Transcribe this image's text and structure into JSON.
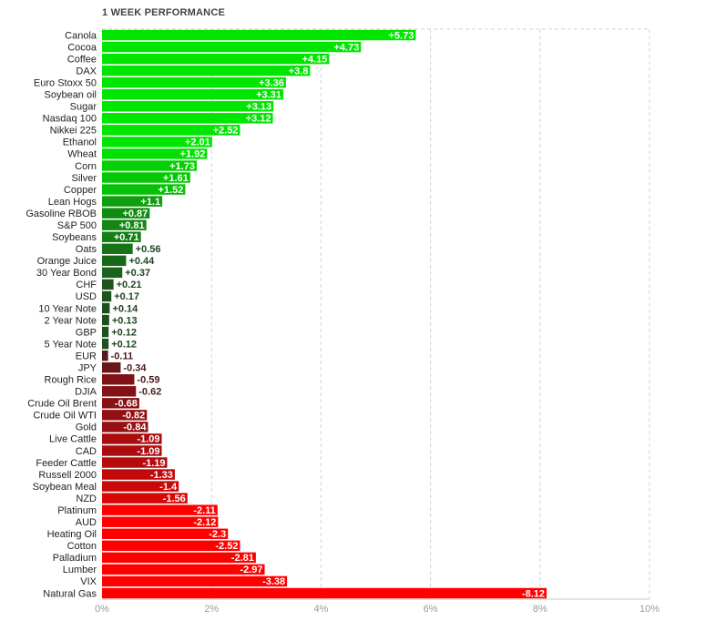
{
  "chart_data": {
    "type": "bar",
    "orientation": "horizontal",
    "title": "1 WEEK PERFORMANCE",
    "categories": [
      "Canola",
      "Cocoa",
      "Coffee",
      "DAX",
      "Euro Stoxx 50",
      "Soybean oil",
      "Sugar",
      "Nasdaq 100",
      "Nikkei 225",
      "Ethanol",
      "Wheat",
      "Corn",
      "Silver",
      "Copper",
      "Lean Hogs",
      "Gasoline RBOB",
      "S&P 500",
      "Soybeans",
      "Oats",
      "Orange Juice",
      "30 Year Bond",
      "CHF",
      "USD",
      "10 Year Note",
      "2 Year Note",
      "GBP",
      "5 Year Note",
      "EUR",
      "JPY",
      "Rough Rice",
      "DJIA",
      "Crude Oil Brent",
      "Crude Oil WTI",
      "Gold",
      "Live Cattle",
      "CAD",
      "Feeder Cattle",
      "Russell 2000",
      "Soybean Meal",
      "NZD",
      "Platinum",
      "AUD",
      "Heating Oil",
      "Cotton",
      "Palladium",
      "Lumber",
      "VIX",
      "Natural Gas"
    ],
    "values": [
      5.73,
      4.73,
      4.15,
      3.8,
      3.36,
      3.31,
      3.13,
      3.12,
      2.52,
      2.01,
      1.92,
      1.73,
      1.61,
      1.52,
      1.1,
      0.87,
      0.81,
      0.71,
      0.56,
      0.44,
      0.37,
      0.21,
      0.17,
      0.14,
      0.13,
      0.12,
      0.12,
      -0.11,
      -0.34,
      -0.59,
      -0.62,
      -0.68,
      -0.82,
      -0.84,
      -1.09,
      -1.09,
      -1.19,
      -1.33,
      -1.4,
      -1.56,
      -2.11,
      -2.12,
      -2.3,
      -2.52,
      -2.81,
      -2.97,
      -3.38,
      -8.12
    ],
    "value_labels": [
      "+5.73",
      "+4.73",
      "+4.15",
      "+3.8",
      "+3.36",
      "+3.31",
      "+3.13",
      "+3.12",
      "+2.52",
      "+2.01",
      "+1.92",
      "+1.73",
      "+1.61",
      "+1.52",
      "+1.1",
      "+0.87",
      "+0.81",
      "+0.71",
      "+0.56",
      "+0.44",
      "+0.37",
      "+0.21",
      "+0.17",
      "+0.14",
      "+0.13",
      "+0.12",
      "+0.12",
      "-0.11",
      "-0.34",
      "-0.59",
      "-0.62",
      "-0.68",
      "-0.82",
      "-0.84",
      "-1.09",
      "-1.09",
      "-1.19",
      "-1.33",
      "-1.4",
      "-1.56",
      "-2.11",
      "-2.12",
      "-2.3",
      "-2.52",
      "-2.81",
      "-2.97",
      "-3.38",
      "-8.12"
    ],
    "bar_magnitude": "absolute value",
    "xlim": [
      0,
      10
    ],
    "xticks": [
      "0%",
      "2%",
      "4%",
      "6%",
      "8%",
      "10%"
    ],
    "grid": true,
    "colors": {
      "positive_strong": "#00e600",
      "positive_weak": "#1e4620",
      "negative_weak": "#4a1a1f",
      "negative_strong": "#ff0000",
      "grid": "#d3d3d3",
      "category_text": "#222222",
      "tick_text": "#9a9a9a"
    }
  }
}
